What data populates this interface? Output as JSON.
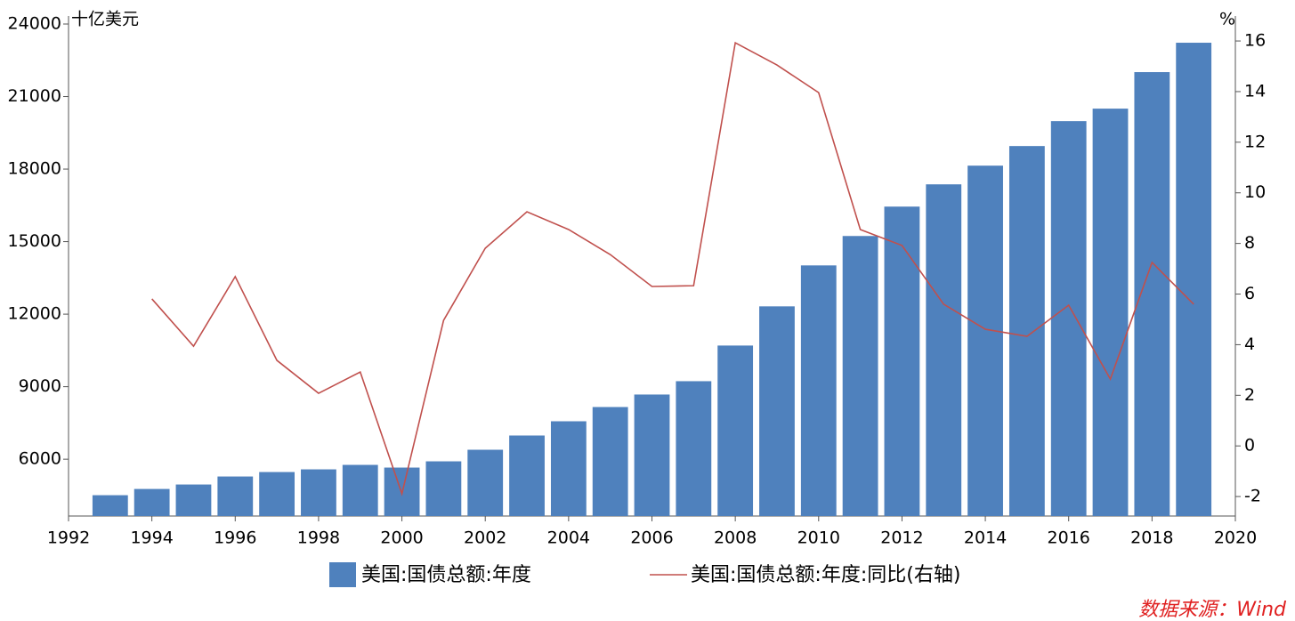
{
  "chart_data": {
    "type": "bar_line",
    "y_label": "十亿美元",
    "y2_label": "%",
    "source": "数据来源：Wind",
    "x": [
      1993,
      1994,
      1995,
      1996,
      1997,
      1998,
      1999,
      2000,
      2001,
      2002,
      2003,
      2004,
      2005,
      2006,
      2007,
      2008,
      2009,
      2010,
      2011,
      2012,
      2013,
      2014,
      2015,
      2016,
      2017,
      2018,
      2019
    ],
    "series": [
      {
        "name": "美国:国债总额:年度",
        "type": "bar",
        "color": "#4f81bd",
        "values": [
          4511,
          4769,
          4954,
          5285,
          5469,
          5580,
          5765,
          5654,
          5912,
          6391,
          6980,
          7569,
          8158,
          8675,
          9227,
          10701,
          12322,
          14016,
          15232,
          16448,
          17369,
          18142,
          18953,
          19984,
          20500,
          22011,
          23226
        ]
      },
      {
        "name": "美国:国债总额:年度:同比(右轴)",
        "type": "line",
        "color": "#c0504d",
        "axis": "y2",
        "values": [
          null,
          5.81,
          3.94,
          6.69,
          3.38,
          2.08,
          2.92,
          -1.89,
          4.96,
          7.81,
          9.25,
          8.55,
          7.56,
          6.3,
          6.33,
          15.93,
          15.05,
          13.96,
          8.55,
          7.92,
          5.6,
          4.61,
          4.33,
          5.56,
          2.64,
          7.25,
          5.6
        ]
      }
    ],
    "xlim": [
      1992,
      2020
    ],
    "xticks": [
      1992,
      1994,
      1996,
      1998,
      2000,
      2002,
      2004,
      2006,
      2008,
      2010,
      2012,
      2014,
      2016,
      2018,
      2020
    ],
    "ylim": [
      3650,
      24000
    ],
    "yticks": [
      6000,
      9000,
      12000,
      15000,
      18000,
      21000,
      24000
    ],
    "y2lim": [
      -2.77,
      16.67
    ],
    "y2ticks": [
      -2,
      0,
      2,
      4,
      6,
      8,
      10,
      12,
      14,
      16
    ]
  }
}
